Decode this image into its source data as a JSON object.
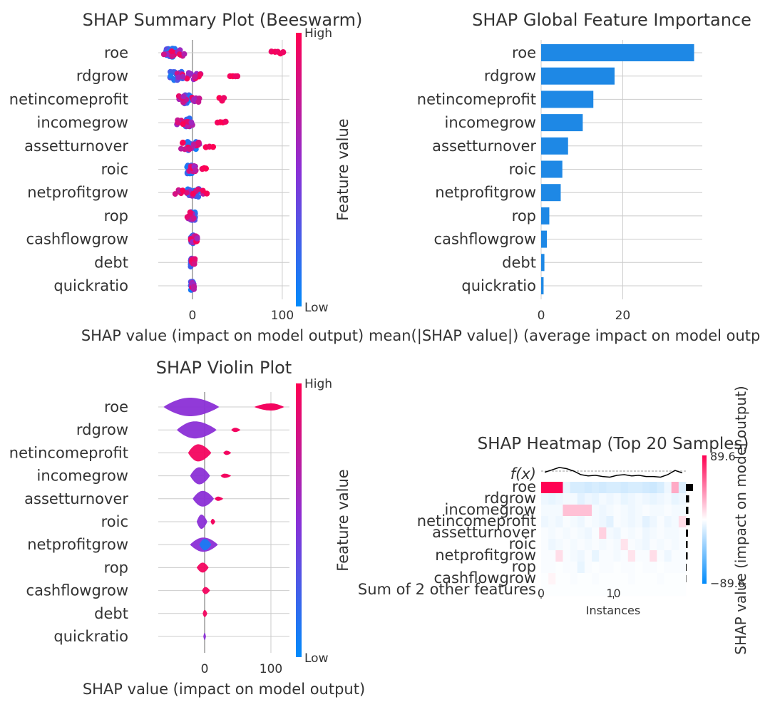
{
  "colors": {
    "low": "#008bfb",
    "mid": "#8b2fd6",
    "high": "#ff0052",
    "bar": "#1e88e5",
    "grid": "#cccccc",
    "zero_line": "#999999",
    "text": "#333333",
    "fx_line": "#000000"
  },
  "features": [
    "roe",
    "rdgrow",
    "netincomeprofit",
    "incomegrow",
    "assetturnover",
    "roic",
    "netprofitgrow",
    "rop",
    "cashflowgrow",
    "debt",
    "quickratio"
  ],
  "chart_data": [
    {
      "id": "beeswarm",
      "type": "scatter",
      "title": "SHAP Summary Plot (Beeswarm)",
      "xlabel": "SHAP value (impact on model output)",
      "xlim": [
        -38,
        108
      ],
      "xticks": [
        0,
        100
      ],
      "colorbar": {
        "label": "Feature value",
        "high": "High",
        "low": "Low"
      },
      "series": [
        {
          "feature": "roe",
          "low_range": [
            -30,
            -18
          ],
          "high_cluster": [
            -32,
            -8
          ],
          "outliers": [
            88,
            92,
            95,
            98,
            101
          ]
        },
        {
          "feature": "rdgrow",
          "low_range": [
            -25,
            -10
          ],
          "high_cluster": [
            -18,
            10
          ],
          "outliers": [
            42,
            45,
            48,
            50
          ]
        },
        {
          "feature": "netincomeprofit",
          "low_range": [
            -12,
            -2
          ],
          "high_cluster": [
            -16,
            8
          ],
          "outliers": [
            30,
            33,
            35
          ]
        },
        {
          "feature": "incomegrow",
          "low_range": [
            -8,
            -2
          ],
          "high_cluster": [
            -20,
            0
          ],
          "outliers": [
            28,
            31,
            34,
            37
          ]
        },
        {
          "feature": "assetturnover",
          "low_range": [
            -6,
            4
          ],
          "high_cluster": [
            -16,
            8
          ],
          "outliers": [
            15,
            19,
            23
          ]
        },
        {
          "feature": "roic",
          "low_range": [
            -6,
            0
          ],
          "high_cluster": [
            -4,
            4
          ],
          "outliers": [
            11,
            13,
            15
          ]
        },
        {
          "feature": "netprofitgrow",
          "low_range": [
            -6,
            8
          ],
          "high_cluster": [
            -20,
            14
          ],
          "outliers": [
            16
          ]
        },
        {
          "feature": "rop",
          "low_range": [
            -2,
            4
          ],
          "high_cluster": [
            -6,
            2
          ],
          "outliers": []
        },
        {
          "feature": "cashflowgrow",
          "low_range": [
            -2,
            2
          ],
          "high_cluster": [
            -3,
            6
          ],
          "outliers": []
        },
        {
          "feature": "debt",
          "low_range": [
            -2,
            1
          ],
          "high_cluster": [
            -1,
            3
          ],
          "outliers": []
        },
        {
          "feature": "quickratio",
          "low_range": [
            -2,
            1
          ],
          "high_cluster": [
            -1,
            2
          ],
          "outliers": []
        }
      ]
    },
    {
      "id": "importance",
      "type": "bar",
      "title": "SHAP Global Feature Importance",
      "xlabel": "mean(|SHAP value|) (average impact on model outp",
      "xlim": [
        0,
        39.5
      ],
      "xticks": [
        0,
        20
      ],
      "categories": [
        "roe",
        "rdgrow",
        "netincomeprofit",
        "incomegrow",
        "assetturnover",
        "roic",
        "netprofitgrow",
        "rop",
        "cashflowgrow",
        "debt",
        "quickratio"
      ],
      "values": [
        37.5,
        18.0,
        12.8,
        10.2,
        6.6,
        5.2,
        4.8,
        2.0,
        1.4,
        0.8,
        0.6
      ]
    },
    {
      "id": "violin",
      "type": "violin",
      "title": "SHAP Violin Plot",
      "xlabel": "SHAP value (impact on model output)",
      "xlim": [
        -70,
        128
      ],
      "xticks": [
        0,
        100
      ],
      "colorbar": {
        "label": "Feature value",
        "high": "High",
        "low": "Low"
      },
      "series": [
        {
          "feature": "roe",
          "main": [
            -62,
            22,
            -22,
            13,
            "mid"
          ],
          "tail": [
            75,
            120,
            100,
            5,
            "high"
          ]
        },
        {
          "feature": "rdgrow",
          "main": [
            -42,
            18,
            -15,
            12,
            "mid"
          ],
          "tail": [
            40,
            54,
            46,
            3,
            "high"
          ]
        },
        {
          "feature": "netincomeprofit",
          "main": [
            -25,
            10,
            -10,
            12,
            "high"
          ],
          "tail": [
            28,
            40,
            33,
            3,
            "high"
          ]
        },
        {
          "feature": "incomegrow",
          "main": [
            -22,
            8,
            -8,
            12,
            "mid"
          ],
          "tail": [
            24,
            40,
            30,
            3,
            "high"
          ]
        },
        {
          "feature": "assetturnover",
          "main": [
            -18,
            14,
            -3,
            11,
            "mid"
          ],
          "tail": [
            15,
            28,
            20,
            3,
            "high"
          ]
        },
        {
          "feature": "roic",
          "main": [
            -12,
            4,
            -5,
            10,
            "mid"
          ],
          "tail": [
            9,
            16,
            12,
            4,
            "high"
          ]
        },
        {
          "feature": "netprofitgrow",
          "main": [
            -22,
            20,
            -2,
            10,
            "mid"
          ],
          "tail": [],
          "low_overlay": [
            -8,
            10,
            0,
            8
          ]
        },
        {
          "feature": "rop",
          "main": [
            -12,
            6,
            -3,
            7,
            "high"
          ],
          "tail": []
        },
        {
          "feature": "cashflowgrow",
          "main": [
            -4,
            8,
            1,
            5,
            "high"
          ],
          "tail": []
        },
        {
          "feature": "debt",
          "main": [
            -3,
            4,
            0,
            5,
            "high"
          ],
          "tail": []
        },
        {
          "feature": "quickratio",
          "main": [
            -2,
            2,
            0,
            5,
            "mid"
          ],
          "tail": []
        }
      ]
    },
    {
      "id": "heatmap",
      "type": "heatmap",
      "title": "SHAP Heatmap (Top 20 Samples)",
      "xlabel": "Instances",
      "xticks": [
        0,
        10
      ],
      "n_instances": 20,
      "fx_label": "f(x)",
      "rows": [
        "roe",
        "rdgrow",
        "incomegrow",
        "netincomeprofit",
        "assetturnover",
        "roic",
        "netprofitgrow",
        "rop",
        "cashflowgrow",
        "Sum of 2 other features"
      ],
      "colorbar": {
        "label": "SHAP value (impact on model output)",
        "max": "89.6",
        "min": "−89.6",
        "vmax": 89.6
      },
      "fx": [
        0.55,
        0.75,
        0.95,
        0.85,
        0.65,
        0.35,
        0.25,
        0.3,
        0.2,
        0.15,
        0.3,
        0.35,
        0.25,
        0.3,
        0.2,
        0.2,
        0.15,
        0.35,
        0.7,
        0.5
      ],
      "importance": [
        1.0,
        0.45,
        0.35,
        0.55,
        0.3,
        0.25,
        0.25,
        0.1,
        0.05,
        0.0
      ],
      "values": [
        [
          89,
          89,
          89,
          -8,
          -14,
          -14,
          -16,
          -14,
          -16,
          -14,
          -14,
          -16,
          -14,
          -14,
          -16,
          -18,
          -14,
          -6,
          30,
          -12
        ],
        [
          -6,
          -8,
          -6,
          -4,
          -4,
          -10,
          -6,
          -8,
          -4,
          -6,
          -4,
          -8,
          -6,
          -4,
          -6,
          -8,
          -6,
          -4,
          -8,
          -6
        ],
        [
          -4,
          -4,
          -4,
          22,
          22,
          22,
          22,
          -4,
          -6,
          -4,
          -2,
          -4,
          -6,
          -4,
          -2,
          -4,
          -4,
          -2,
          -4,
          -4
        ],
        [
          -6,
          -4,
          -6,
          -2,
          -4,
          -6,
          -2,
          -4,
          -6,
          -10,
          -2,
          -4,
          -6,
          -4,
          -10,
          -6,
          -2,
          -6,
          -4,
          12
        ],
        [
          -2,
          -4,
          -2,
          -4,
          -2,
          -4,
          -6,
          -2,
          16,
          -4,
          -6,
          -2,
          -4,
          -2,
          -6,
          -4,
          -2,
          -4,
          -4,
          -2
        ],
        [
          -2,
          -6,
          -4,
          -2,
          -4,
          -2,
          -4,
          -2,
          -4,
          -2,
          -4,
          10,
          -2,
          -4,
          -6,
          -2,
          -4,
          -2,
          -4,
          -2
        ],
        [
          -2,
          -2,
          12,
          -2,
          -4,
          -6,
          -2,
          -8,
          -2,
          -2,
          -4,
          -2,
          10,
          -2,
          -2,
          12,
          -2,
          -6,
          -2,
          -2
        ],
        [
          -2,
          -2,
          -1,
          -2,
          -2,
          -8,
          -2,
          -1,
          -2,
          -2,
          -1,
          -2,
          -2,
          -1,
          -2,
          -2,
          -1,
          -2,
          -2,
          -2
        ],
        [
          -1,
          4,
          -1,
          -1,
          -2,
          -1,
          -1,
          -2,
          -1,
          -1,
          -1,
          -1,
          -2,
          -1,
          -1,
          -1,
          -2,
          -1,
          -1,
          -1
        ],
        [
          -1,
          -1,
          -1,
          -1,
          -1,
          -1,
          -1,
          -1,
          -1,
          -1,
          -1,
          -1,
          -1,
          -1,
          -1,
          -1,
          -1,
          -1,
          -1,
          -1
        ]
      ]
    }
  ]
}
